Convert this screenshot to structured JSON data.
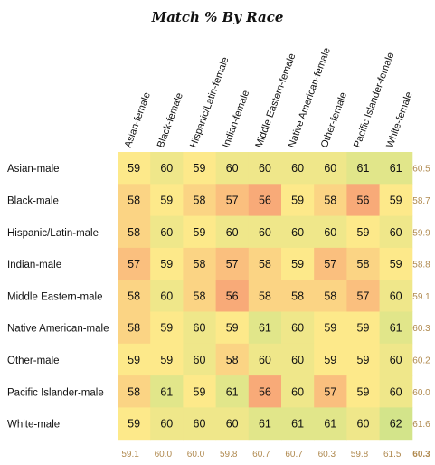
{
  "chart_data": {
    "type": "heatmap",
    "title": "Match % By Race",
    "columns": [
      "Asian-female",
      "Black-female",
      "Hispanic/Latin-female",
      "Indian-female",
      "Middle Eastern-female",
      "Native American-female",
      "Other-female",
      "Pacific Islander-female",
      "White-female"
    ],
    "rows": [
      "Asian-male",
      "Black-male",
      "Hispanic/Latin-male",
      "Indian-male",
      "Middle Eastern-male",
      "Native American-male",
      "Other-male",
      "Pacific Islander-male",
      "White-male"
    ],
    "values": [
      [
        59,
        60,
        59,
        60,
        60,
        60,
        60,
        61,
        61
      ],
      [
        58,
        59,
        58,
        57,
        56,
        59,
        58,
        56,
        59
      ],
      [
        58,
        60,
        59,
        60,
        60,
        60,
        60,
        59,
        60
      ],
      [
        57,
        59,
        58,
        57,
        58,
        59,
        57,
        58,
        59
      ],
      [
        58,
        60,
        58,
        56,
        58,
        58,
        58,
        57,
        60
      ],
      [
        58,
        59,
        60,
        59,
        61,
        60,
        59,
        59,
        61
      ],
      [
        59,
        59,
        60,
        58,
        60,
        60,
        59,
        59,
        60
      ],
      [
        58,
        61,
        59,
        61,
        56,
        60,
        57,
        59,
        60
      ],
      [
        59,
        60,
        60,
        60,
        61,
        61,
        61,
        60,
        62
      ]
    ],
    "row_averages": [
      "60.5",
      "58.7",
      "59.9",
      "58.8",
      "59.1",
      "60.3",
      "60.2",
      "60.0",
      "61.6"
    ],
    "column_averages": [
      "59.1",
      "60.0",
      "60.0",
      "59.8",
      "60.7",
      "60.7",
      "60.3",
      "59.8",
      "61.5"
    ],
    "overall_average": "60.3",
    "color_scale": {
      "low": "#f8aa78",
      "mid": "#fde98a",
      "high": "#d3e48a"
    }
  }
}
